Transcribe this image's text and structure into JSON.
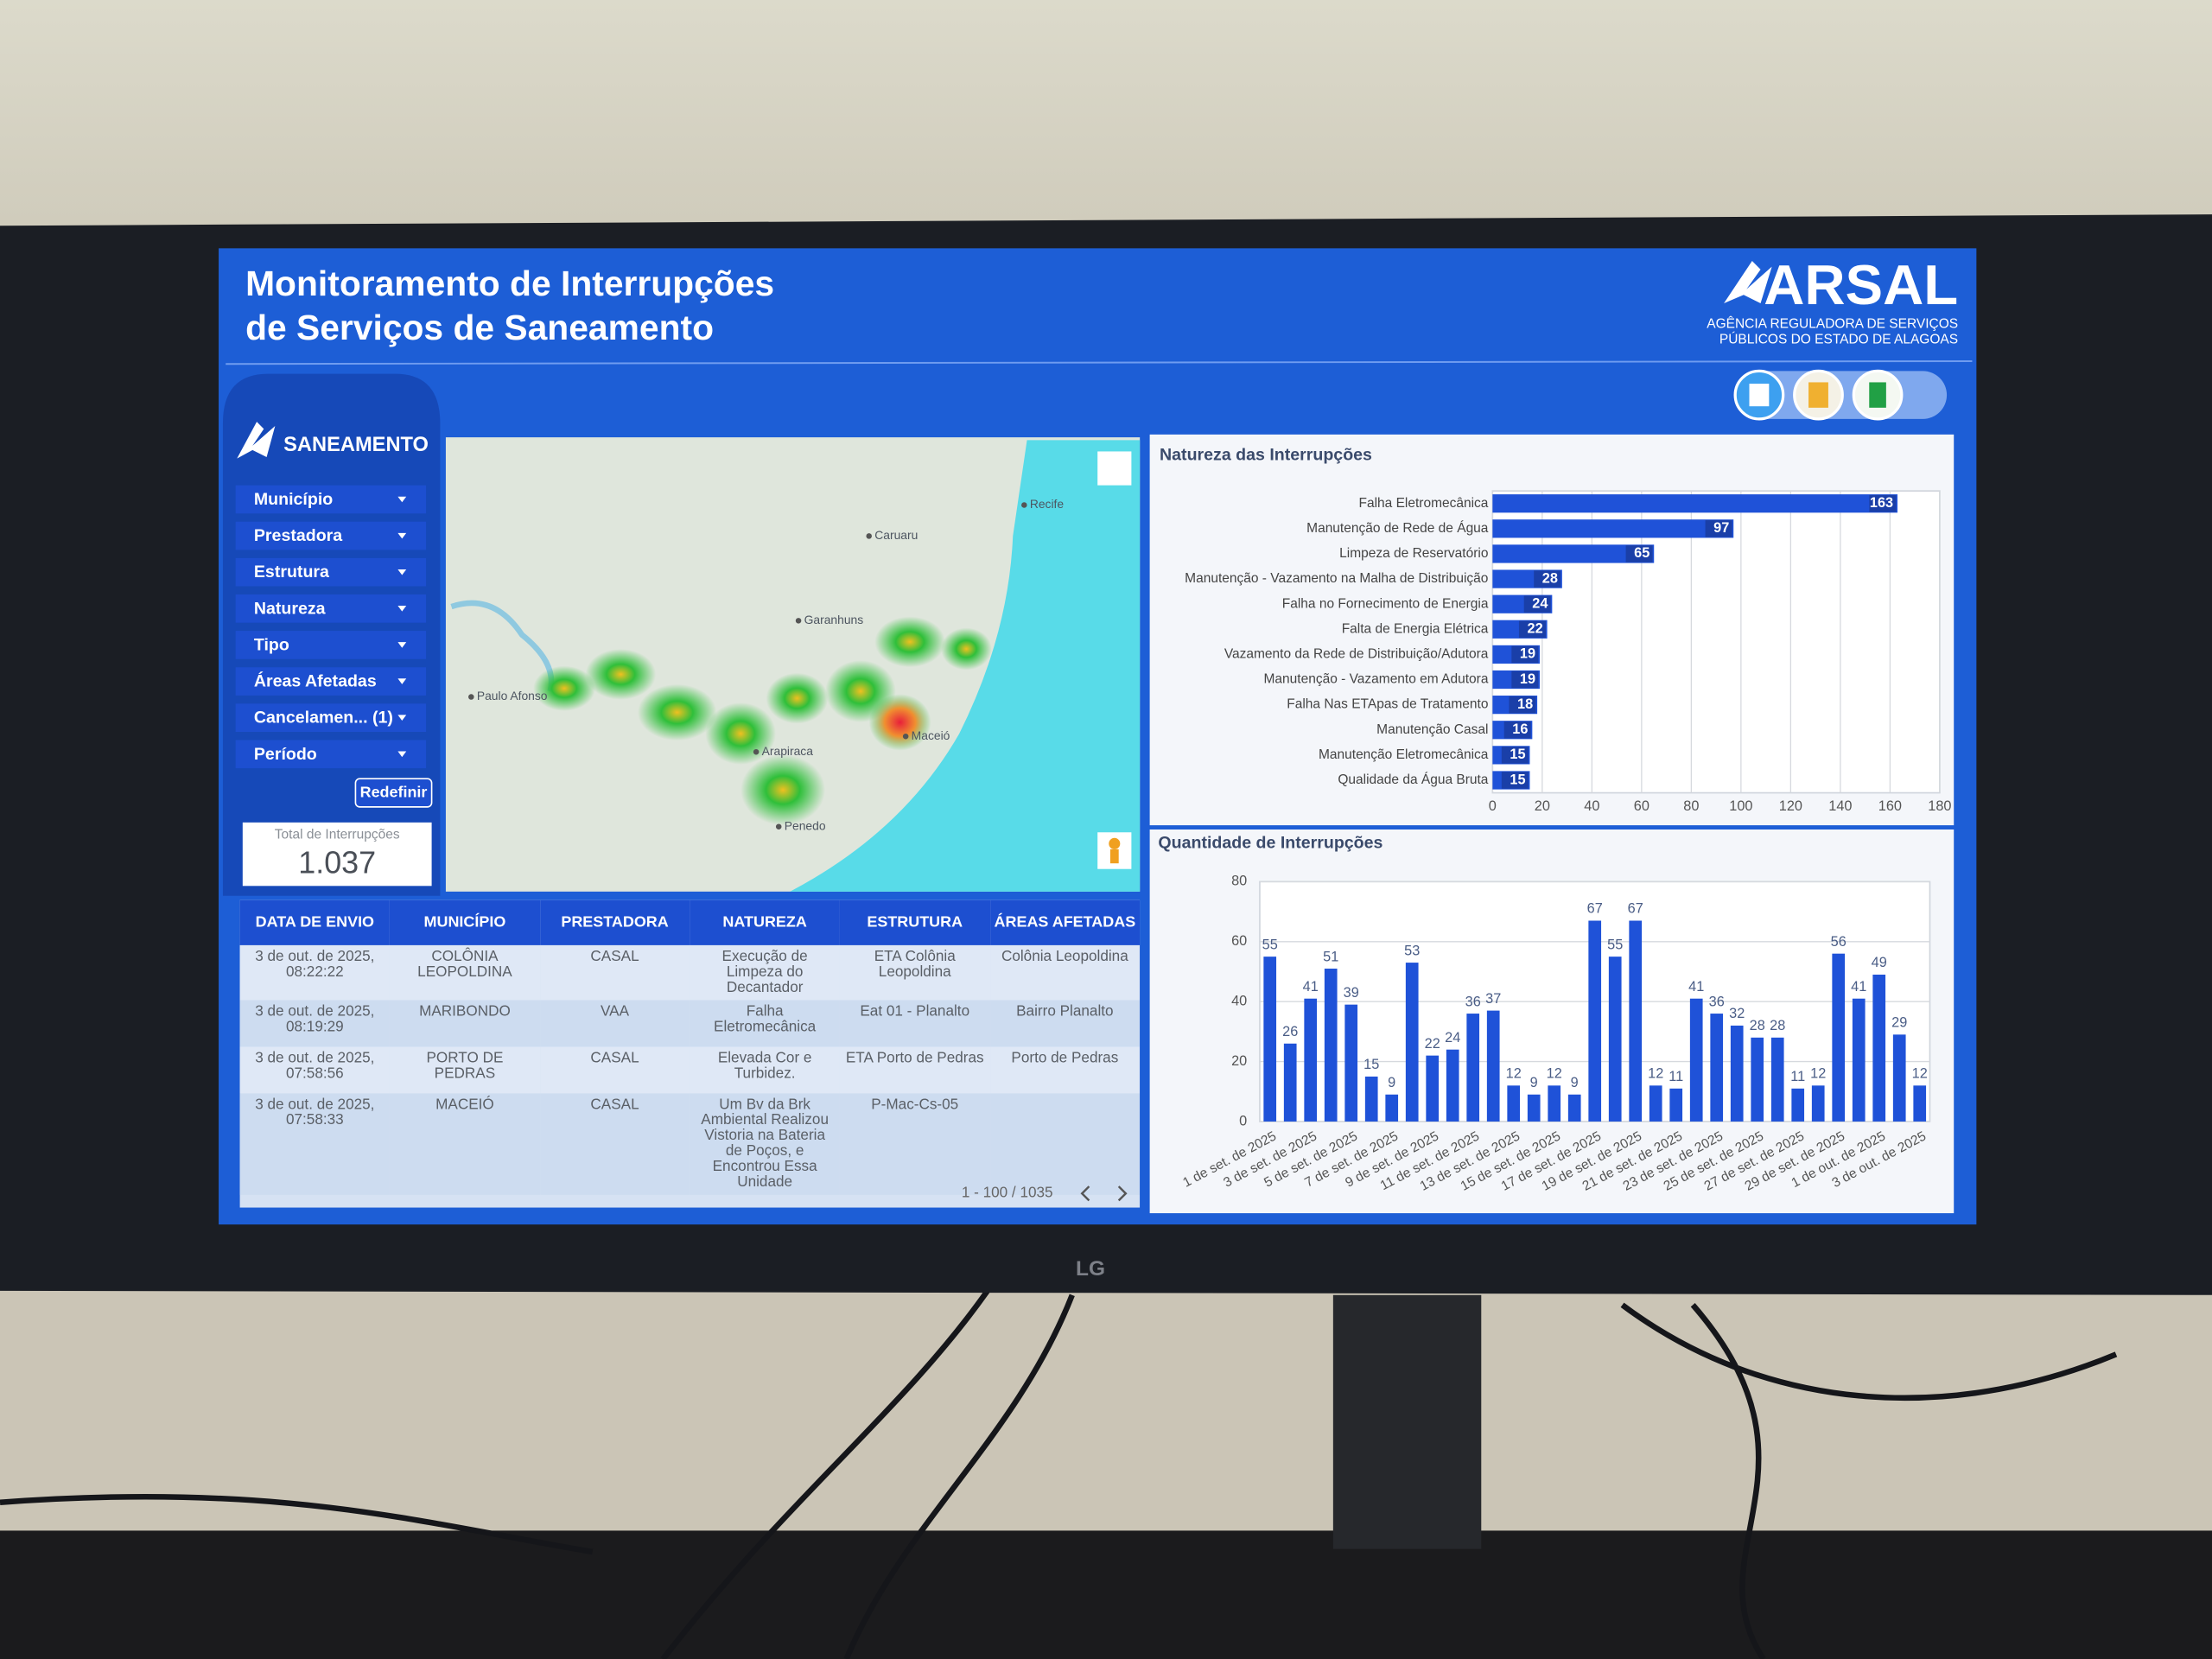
{
  "header": {
    "title_line1": "Monitoramento de Interrupções",
    "title_line2": "de Serviços de Saneamento",
    "logo": "ARSAL",
    "logo_sub1": "AGÊNCIA REGULADORA DE SERVIÇOS",
    "logo_sub2": "PÚBLICOS DO ESTADO DE ALAGOAS"
  },
  "sidebar": {
    "brand": "SANEAMENTO",
    "filters": [
      "Município",
      "Prestadora",
      "Estrutura",
      "Natureza",
      "Tipo",
      "Áreas Afetadas",
      "Cancelamen... (1)",
      "Período"
    ],
    "reset": "Redefinir",
    "total_label": "Total de Interrupções",
    "total_value": "1.037"
  },
  "map": {
    "labels": [
      "Recife",
      "Caruaru",
      "Garanhuns",
      "Paulo Afonso",
      "Arapiraca",
      "Maceió",
      "Penedo"
    ]
  },
  "table": {
    "columns": [
      "DATA DE ENVIO",
      "MUNICÍPIO",
      "PRESTADORA",
      "NATUREZA",
      "ESTRUTURA",
      "ÁREAS AFETADAS"
    ],
    "rows": [
      [
        "3 de out. de 2025, 08:22:22",
        "COLÔNIA LEOPOLDINA",
        "CASAL",
        "Execução de Limpeza do Decantador",
        "ETA Colônia Leopoldina",
        "Colônia Leopoldina"
      ],
      [
        "3 de out. de 2025, 08:19:29",
        "MARIBONDO",
        "VAA",
        "Falha Eletromecânica",
        "Eat 01 - Planalto",
        "Bairro Planalto"
      ],
      [
        "3 de out. de 2025, 07:58:56",
        "PORTO DE PEDRAS",
        "CASAL",
        "Elevada Cor e Turbidez.",
        "ETA Porto de Pedras",
        "Porto de Pedras"
      ],
      [
        "3 de out. de 2025, 07:58:33",
        "MACEIÓ",
        "CASAL",
        "Um Bv da Brk Ambiental Realizou Vistoria na Bateria de Poços, e Encontrou Essa Unidade",
        "P-Mac-Cs-05",
        null
      ]
    ],
    "pagination": "1 - 100 / 1035"
  },
  "monitor": {
    "brand": "LG"
  },
  "chart_data": [
    {
      "type": "hbar",
      "title": "Natureza das Interrupções",
      "categories": [
        "Falha Eletromecânica",
        "Manutenção de Rede de Água",
        "Limpeza de Reservatório",
        "Manutenção - Vazamento na Malha de Distribuição",
        "Falha no Fornecimento de Energia",
        "Falta de Energia Elétrica",
        "Vazamento da Rede de Distribuição/Adutora",
        "Manutenção - Vazamento em Adutora",
        "Falha Nas ETApas de Tratamento",
        "Manutenção Casal",
        "Manutenção Eletromecânica",
        "Qualidade da Água Bruta"
      ],
      "values": [
        163,
        97,
        65,
        28,
        24,
        22,
        19,
        19,
        18,
        16,
        15,
        15
      ],
      "color": "#1f52d8",
      "xlim": [
        0,
        180
      ],
      "xticks": [
        0,
        20,
        40,
        60,
        80,
        100,
        120,
        140,
        160,
        180
      ],
      "grid": true
    },
    {
      "type": "bar",
      "title": "Quantidade de Interrupções",
      "categories": [
        "1 de set. de 2025",
        null,
        "3 de set. de 2025",
        null,
        "5 de set. de 2025",
        null,
        "7 de set. de 2025",
        null,
        "9 de set. de 2025",
        null,
        "11 de set. de 2025",
        null,
        "13 de set. de 2025",
        null,
        "15 de set. de 2025",
        null,
        "17 de set. de 2025",
        null,
        "19 de set. de 2025",
        null,
        "21 de set. de 2025",
        null,
        "23 de set. de 2025",
        null,
        "25 de set. de 2025",
        null,
        "27 de set. de 2025",
        null,
        "29 de set. de 2025",
        null,
        "1 de out. de 2025",
        null,
        "3 de out. de 2025"
      ],
      "values": [
        55,
        26,
        41,
        51,
        39,
        15,
        9,
        53,
        22,
        24,
        36,
        37,
        12,
        9,
        12,
        9,
        67,
        55,
        67,
        12,
        11,
        41,
        36,
        32,
        28,
        28,
        11,
        12,
        56,
        41,
        49,
        29,
        12
      ],
      "color": "#1f52d8",
      "ylim": [
        0,
        80
      ],
      "yticks": [
        0,
        20,
        40,
        60,
        80
      ],
      "grid": true
    }
  ]
}
